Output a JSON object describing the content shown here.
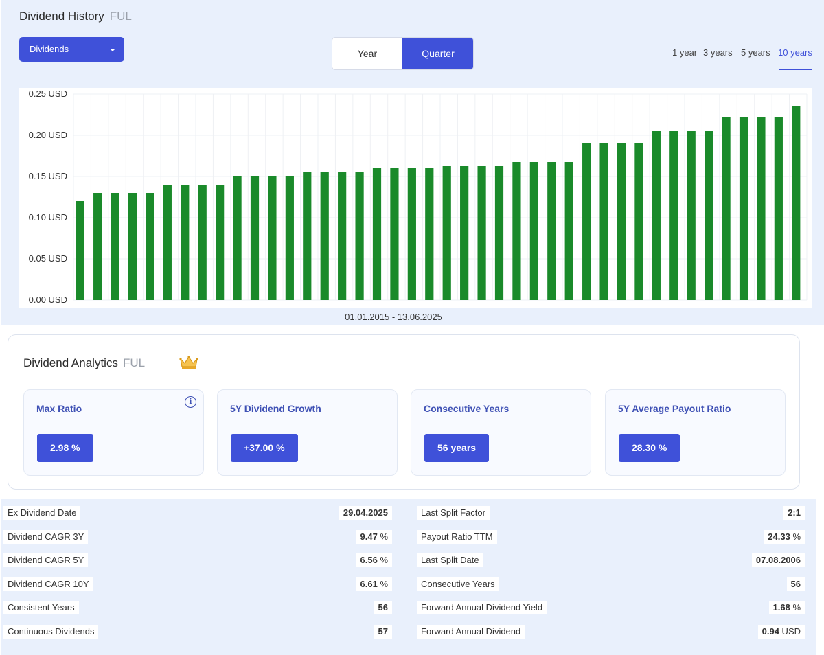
{
  "header": {
    "title": "Dividend History",
    "ticker": "FUL",
    "dropdown_label": "Dividends",
    "toggle": {
      "year": "Year",
      "quarter": "Quarter",
      "selected": "Quarter"
    },
    "ranges": [
      "1 year",
      "3 years",
      "5 years",
      "10 years"
    ],
    "active_range": "10 years",
    "date_range": "01.01.2015 - 13.06.2025"
  },
  "chart_data": {
    "type": "bar",
    "y_tick_labels": [
      "0.25 USD",
      "0.20 USD",
      "0.15 USD",
      "0.10 USD",
      "0.05 USD",
      "0.00 USD"
    ],
    "ylim": [
      0,
      0.25
    ],
    "grid": true,
    "bar_color": "#1a8a2a",
    "values": [
      0.12,
      0.13,
      0.13,
      0.13,
      0.13,
      0.14,
      0.14,
      0.14,
      0.14,
      0.15,
      0.15,
      0.15,
      0.15,
      0.155,
      0.155,
      0.155,
      0.155,
      0.16,
      0.16,
      0.16,
      0.16,
      0.1625,
      0.1625,
      0.1625,
      0.1625,
      0.1675,
      0.1675,
      0.1675,
      0.1675,
      0.19,
      0.19,
      0.19,
      0.19,
      0.205,
      0.205,
      0.205,
      0.205,
      0.2225,
      0.2225,
      0.2225,
      0.2225,
      0.235
    ]
  },
  "analytics": {
    "title": "Dividend Analytics",
    "ticker": "FUL",
    "crown_icon": "crown-icon",
    "cards": [
      {
        "label": "Max Ratio",
        "value": "2.98 %"
      },
      {
        "label": "5Y Dividend Growth",
        "value": "+37.00 %"
      },
      {
        "label": "Consecutive Years",
        "value": "56 years"
      },
      {
        "label": "5Y Average Payout Ratio",
        "value": "28.30 %"
      }
    ]
  },
  "stats": {
    "left": [
      {
        "label": "Ex Dividend Date",
        "value": "29.04.2025",
        "unit": ""
      },
      {
        "label": "Dividend CAGR 3Y",
        "value": "9.47",
        "unit": " %"
      },
      {
        "label": "Dividend CAGR 5Y",
        "value": "6.56",
        "unit": " %"
      },
      {
        "label": "Dividend CAGR 10Y",
        "value": "6.61",
        "unit": " %"
      },
      {
        "label": "Consistent Years",
        "value": "56",
        "unit": ""
      },
      {
        "label": "Continuous Dividends",
        "value": "57",
        "unit": ""
      }
    ],
    "right": [
      {
        "label": "Last Split Factor",
        "value": "2:1",
        "unit": ""
      },
      {
        "label": "Payout Ratio TTM",
        "value": "24.33",
        "unit": " %"
      },
      {
        "label": "Last Split Date",
        "value": "07.08.2006",
        "unit": ""
      },
      {
        "label": "Consecutive Years",
        "value": "56",
        "unit": ""
      },
      {
        "label": "Forward Annual Dividend Yield",
        "value": "1.68",
        "unit": " %"
      },
      {
        "label": "Forward Annual Dividend",
        "value": "0.94",
        "unit": " USD"
      }
    ]
  }
}
